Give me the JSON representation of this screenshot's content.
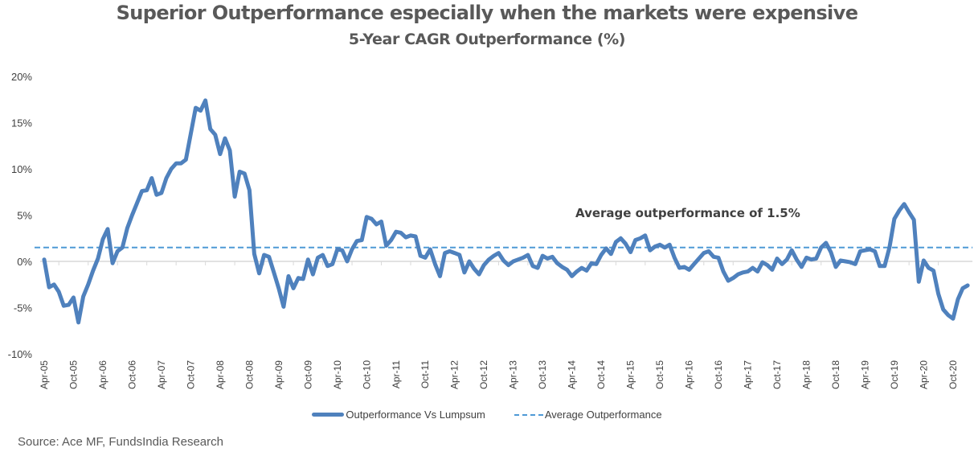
{
  "chart_data": {
    "type": "line",
    "title": "Superior Outperformance especially when the markets were expensive",
    "subtitle": "5-Year CAGR Outperformance (%)",
    "xlabel": "",
    "ylabel": "",
    "ylim": [
      -10,
      20
    ],
    "yticks": [
      -10,
      -5,
      0,
      5,
      10,
      15,
      20
    ],
    "ytick_labels": [
      "-10%",
      "-5%",
      "0%",
      "5%",
      "10%",
      "15%",
      "20%"
    ],
    "xtick_labels": [
      "Apr-05",
      "Oct-05",
      "Apr-06",
      "Oct-06",
      "Apr-07",
      "Oct-07",
      "Apr-08",
      "Oct-08",
      "Apr-09",
      "Oct-09",
      "Apr-10",
      "Oct-10",
      "Apr-11",
      "Oct-11",
      "Apr-12",
      "Oct-12",
      "Apr-13",
      "Oct-13",
      "Apr-14",
      "Oct-14",
      "Apr-15",
      "Oct-15",
      "Apr-16",
      "Oct-16",
      "Apr-17",
      "Oct-17",
      "Apr-18",
      "Oct-18",
      "Apr-19",
      "Oct-19",
      "Apr-20",
      "Oct-20"
    ],
    "x_start": "Apr-05",
    "x_frequency": "monthly",
    "grid": false,
    "legend_position": "bottom",
    "series": [
      {
        "name": "Outperformance Vs Lumpsum",
        "color": "#4f81bd",
        "style": "solid",
        "values": [
          0.2,
          -2.8,
          -2.5,
          -3.3,
          -4.8,
          -4.7,
          -3.9,
          -6.6,
          -3.8,
          -2.5,
          -1.0,
          0.3,
          2.4,
          3.5,
          -0.2,
          1.1,
          1.5,
          3.6,
          5.0,
          6.3,
          7.6,
          7.7,
          9.0,
          7.2,
          7.4,
          9.0,
          10.0,
          10.6,
          10.6,
          11.0,
          13.8,
          16.6,
          16.3,
          17.4,
          14.3,
          13.7,
          11.6,
          13.3,
          12.0,
          7.0,
          9.7,
          9.5,
          7.7,
          0.8,
          -1.3,
          0.7,
          0.5,
          -1.2,
          -2.9,
          -4.9,
          -1.6,
          -2.9,
          -1.8,
          -1.9,
          0.2,
          -1.4,
          0.4,
          0.7,
          -0.5,
          -0.3,
          1.3,
          1.2,
          0.0,
          1.3,
          2.2,
          2.3,
          4.8,
          4.6,
          4.0,
          4.3,
          1.7,
          2.3,
          3.2,
          3.1,
          2.6,
          2.8,
          2.7,
          0.6,
          0.4,
          1.3,
          -0.3,
          -1.6,
          0.9,
          1.1,
          0.9,
          0.7,
          -1.2,
          0.0,
          -0.8,
          -1.4,
          -0.4,
          0.2,
          0.6,
          0.9,
          0.1,
          -0.4,
          0.0,
          0.2,
          0.4,
          0.7,
          -0.5,
          -0.7,
          0.6,
          0.3,
          0.5,
          -0.2,
          -0.6,
          -0.9,
          -1.6,
          -1.1,
          -0.7,
          -1.0,
          -0.2,
          -0.3,
          0.7,
          1.4,
          0.8,
          2.1,
          2.5,
          1.9,
          1.0,
          2.3,
          2.5,
          2.8,
          1.2,
          1.6,
          1.8,
          1.5,
          1.8,
          0.4,
          -0.7,
          -0.6,
          -0.9,
          -0.3,
          0.3,
          0.9,
          1.1,
          0.5,
          0.4,
          -1.1,
          -2.1,
          -1.8,
          -1.4,
          -1.2,
          -1.1,
          -0.7,
          -1.1,
          -0.1,
          -0.4,
          -0.9,
          0.3,
          -0.3,
          0.2,
          1.2,
          0.2,
          -0.6,
          0.4,
          0.2,
          0.3,
          1.5,
          2.0,
          1.0,
          -0.6,
          0.1,
          0.0,
          -0.1,
          -0.3,
          1.1,
          1.2,
          1.3,
          1.1,
          -0.5,
          -0.5,
          1.5,
          4.6,
          5.5,
          6.2,
          5.3,
          4.5,
          -2.2,
          0.1,
          -0.7,
          -1.0,
          -3.5,
          -5.2,
          -5.8,
          -6.2,
          -4.1,
          -2.9,
          -2.6
        ]
      },
      {
        "name": "Average Outperformance",
        "color": "#4f9ad6",
        "style": "dashed",
        "constant_value": 1.5
      }
    ],
    "annotations": [
      {
        "text": "Average outperformance of 1.5%",
        "near": "average line, right-center"
      }
    ]
  },
  "footer": {
    "source": "Source: Ace MF, FundsIndia Research"
  }
}
